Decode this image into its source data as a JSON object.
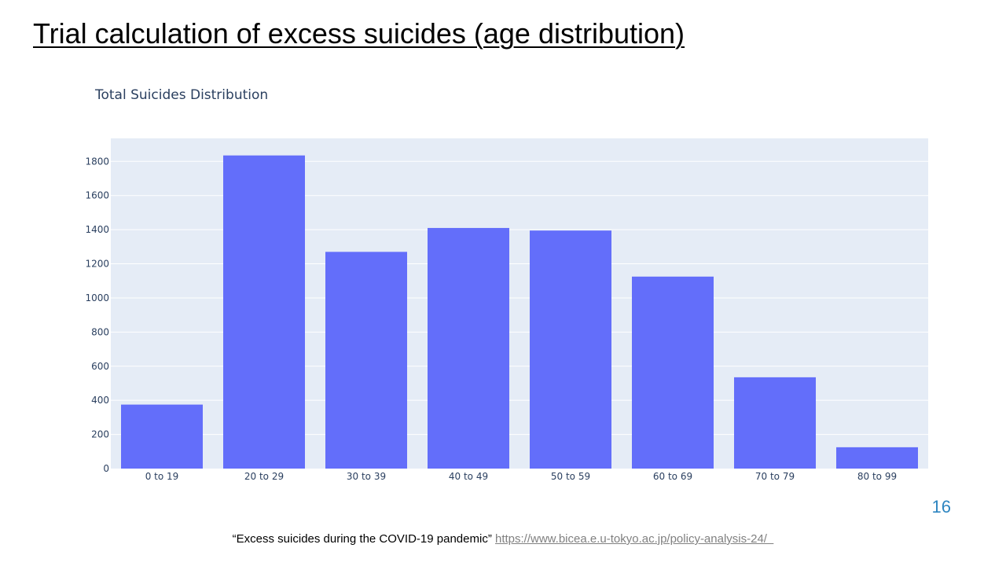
{
  "slide": {
    "title": "Trial calculation of excess suicides (age distribution)",
    "page_number": "16",
    "source_text": "“Excess suicides during the COVID-19 pandemic”",
    "source_link": "https://www.bicea.e.u-tokyo.ac.jp/policy-analysis-24/"
  },
  "colors": {
    "bar": "#636efa",
    "plot_bg": "#e5ecf6",
    "grid": "#ffffff",
    "title_text": "#2a3f5f",
    "tick_text": "#2a3f5f",
    "page_number": "#2e86c1"
  },
  "chart_data": {
    "type": "bar",
    "title": "Total Suicides Distribution",
    "xlabel": "",
    "ylabel": "",
    "categories": [
      "0 to 19",
      "20 to 29",
      "30 to 39",
      "40 to 49",
      "50 to 59",
      "60 to 69",
      "70 to 79",
      "80 to 99"
    ],
    "values": [
      375,
      1835,
      1270,
      1410,
      1395,
      1125,
      535,
      125
    ],
    "ylim": [
      0,
      1935
    ],
    "yticks": [
      0,
      200,
      400,
      600,
      800,
      1000,
      1200,
      1400,
      1600,
      1800
    ],
    "grid": true,
    "legend": "none"
  }
}
